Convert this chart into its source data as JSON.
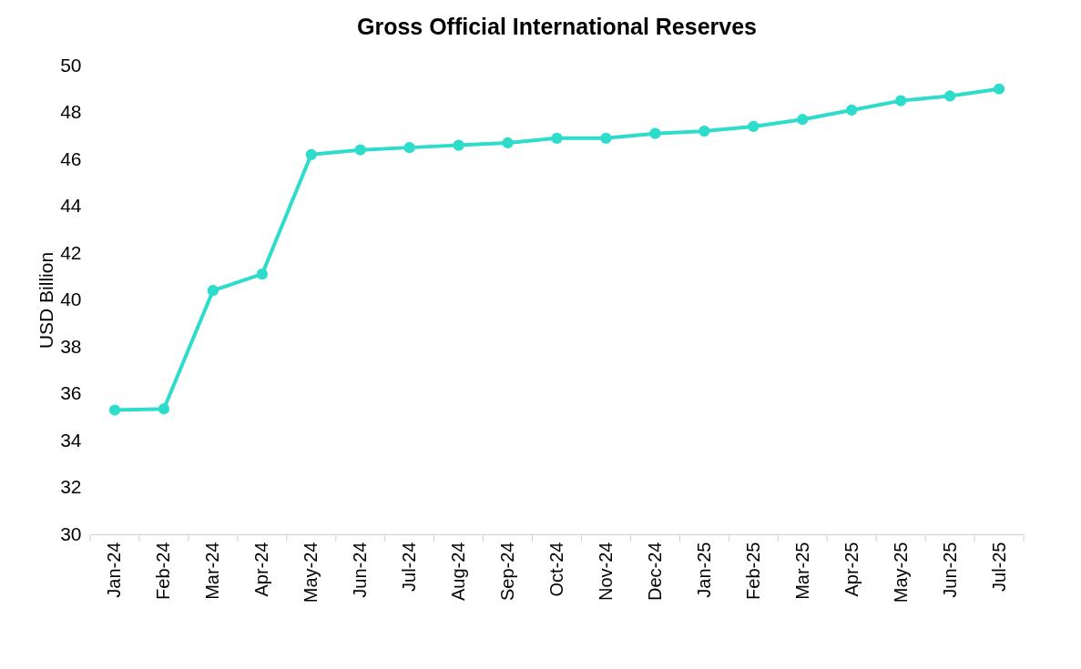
{
  "chart_data": {
    "type": "line",
    "title": "Gross Official International Reserves",
    "ylabel": "USD Billion",
    "categories": [
      "Jan-24",
      "Feb-24",
      "Mar-24",
      "Apr-24",
      "May-24",
      "Jun-24",
      "Jul-24",
      "Aug-24",
      "Sep-24",
      "Oct-24",
      "Nov-24",
      "Dec-24",
      "Jan-25",
      "Feb-25",
      "Mar-25",
      "Apr-25",
      "May-25",
      "Jun-25",
      "Jul-25"
    ],
    "series": [
      {
        "color": "#2ddccb",
        "values": [
          35.3,
          35.35,
          40.4,
          41.1,
          46.2,
          46.4,
          46.5,
          46.6,
          46.7,
          46.9,
          46.9,
          47.1,
          47.2,
          47.4,
          47.7,
          48.1,
          48.5,
          48.7,
          49.0
        ]
      }
    ],
    "ylim": [
      30,
      50
    ],
    "yticks": [
      30,
      32,
      34,
      36,
      38,
      40,
      42,
      44,
      46,
      48,
      50
    ],
    "grid": false,
    "marker": "circle",
    "line_style": "solid"
  }
}
